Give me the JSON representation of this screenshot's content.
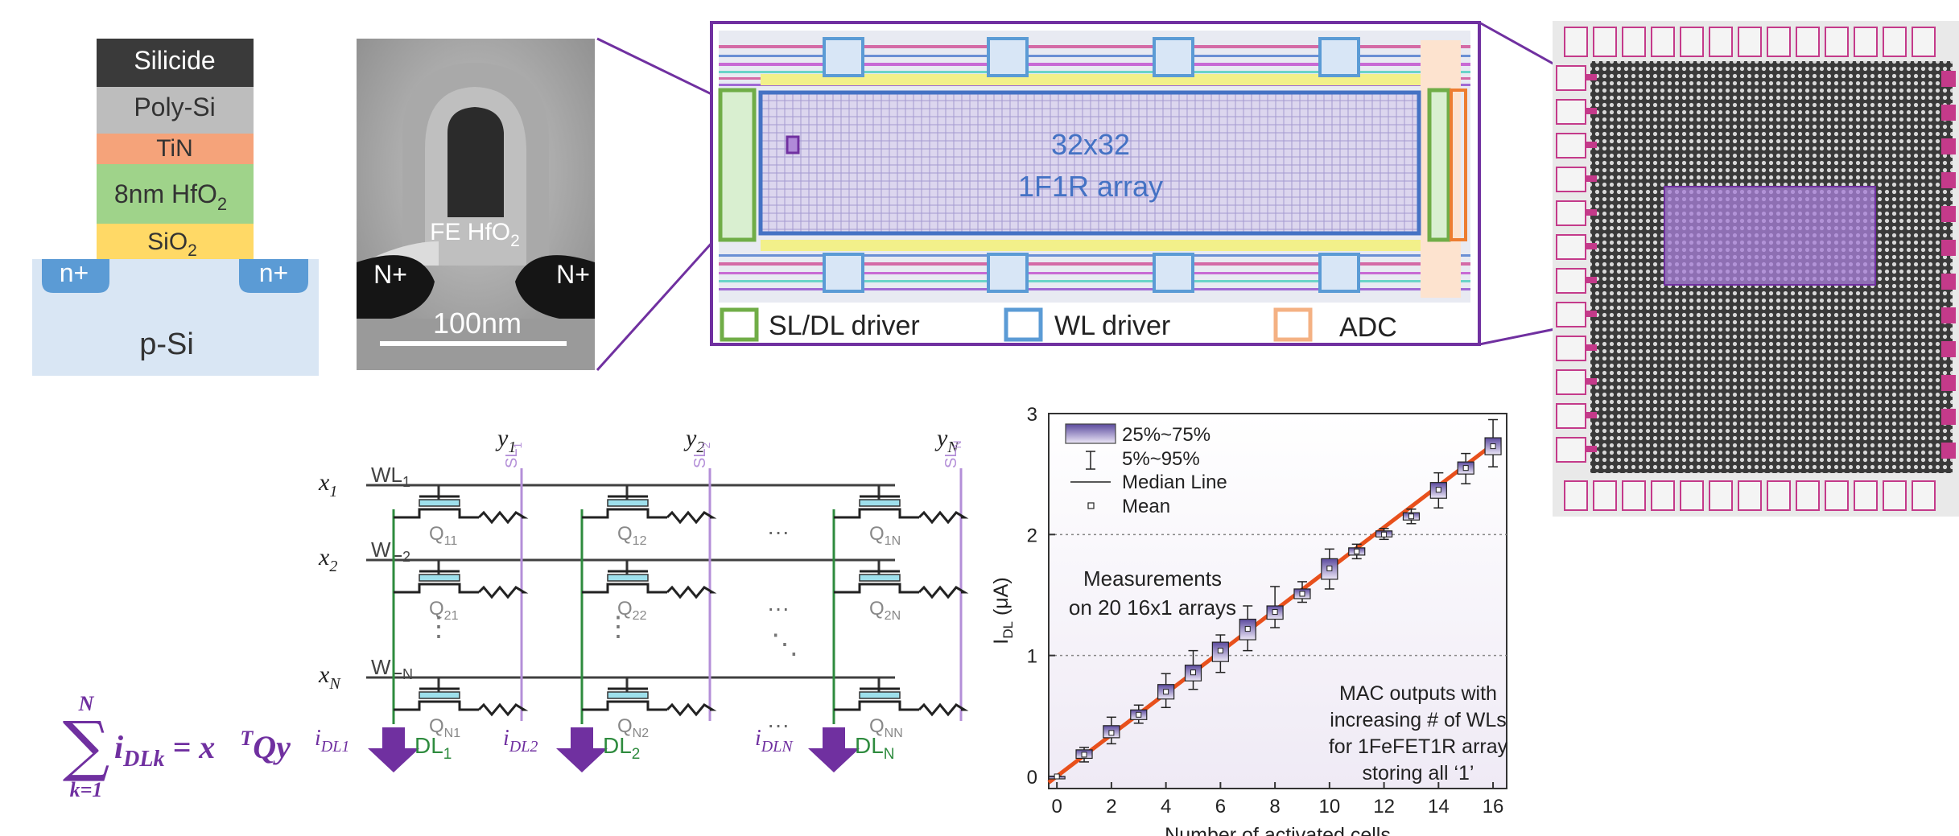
{
  "stack": {
    "silicide": "Silicide",
    "poly": "Poly-Si",
    "tin": "TiN",
    "hfo2_pre": "8nm HfO",
    "hfo2_sub": "2",
    "sio2_pre": "SiO",
    "sio2_sub": "2",
    "n_left": "n+",
    "n_right": "n+",
    "substrate": "p-Si",
    "colors": {
      "silicide": "#3a3a3a",
      "poly": "#bdbdbd",
      "tin": "#f5a37a",
      "hfo2": "#9fd38a",
      "sio2": "#ffd966",
      "substrate": "#d9e6f4",
      "nwell": "#5b9bd5"
    }
  },
  "tem": {
    "fe_label_pre": "FE HfO",
    "fe_label_sub": "2",
    "n_left": "N+",
    "n_right": "N+",
    "scale": "100nm"
  },
  "layout": {
    "array_line1": "32x32",
    "array_line2": "1F1R array",
    "legend": [
      "SL/DL driver",
      "WL driver",
      "ADC"
    ],
    "colors": {
      "frame": "#7030a0",
      "sl": "#70ad47",
      "wl": "#5b9bd5",
      "adc": "#f4b183",
      "array": "#4472c4"
    }
  },
  "circuit": {
    "columns": [
      {
        "y_base": "y",
        "y_sub": "1",
        "sl_base": "SL",
        "sl_sub": "1",
        "i_base": "i",
        "i_sub": "DL1",
        "dl_base": "DL",
        "dl_sub": "1"
      },
      {
        "y_base": "y",
        "y_sub": "2",
        "sl_base": "SL",
        "sl_sub": "2",
        "i_base": "i",
        "i_sub": "DL2",
        "dl_base": "DL",
        "dl_sub": "2"
      },
      {
        "y_base": "y",
        "y_sub": "N",
        "sl_base": "SL",
        "sl_sub": "N",
        "i_base": "i",
        "i_sub": "DLN",
        "dl_base": "DL",
        "dl_sub": "N"
      }
    ],
    "rows": [
      {
        "x_base": "x",
        "x_sub": "1",
        "wl_base": "WL",
        "wl_sub": "1"
      },
      {
        "x_base": "x",
        "x_sub": "2",
        "wl_base": "WL",
        "wl_sub": "2"
      },
      {
        "x_base": "x",
        "x_sub": "N",
        "wl_base": "WL",
        "wl_sub": "N"
      }
    ],
    "cells": [
      [
        "11",
        "12",
        "1N"
      ],
      [
        "21",
        "22",
        "2N"
      ],
      [
        "N1",
        "N2",
        "NN"
      ]
    ],
    "q": "Q",
    "dots": "···",
    "vdots": "⋮",
    "ddots": "⋱",
    "colors": {
      "wl": "#404040",
      "sl": "#b48fd8",
      "dl": "#2e8b3e",
      "arrow": "#7030a0",
      "fet": "#9ee0ec"
    }
  },
  "equation": {
    "top": "N",
    "sum": "∑",
    "bottom": "k=1",
    "body": "i",
    "body_sub": "DLk",
    "rest": " = x⃗",
    "sup": "T",
    "tail": "Qy⃗"
  },
  "chart_data": {
    "type": "box",
    "xlabel": "Number of activated cells",
    "ylabel_base": "I",
    "ylabel_sub": "DL",
    "ylabel_unit": " (μA)",
    "xlim": [
      -0.3,
      16.5
    ],
    "ylim": [
      -0.1,
      3.0
    ],
    "xticks": [
      0,
      2,
      4,
      6,
      8,
      10,
      12,
      14,
      16
    ],
    "yticks": [
      0,
      1,
      2,
      3
    ],
    "x": [
      0,
      1,
      2,
      3,
      4,
      5,
      6,
      7,
      8,
      9,
      10,
      11,
      12,
      13,
      14,
      15,
      16
    ],
    "mean": [
      0.0,
      0.18,
      0.36,
      0.51,
      0.7,
      0.86,
      1.04,
      1.22,
      1.36,
      1.51,
      1.72,
      1.86,
      2.0,
      2.15,
      2.37,
      2.55,
      2.73
    ],
    "q1": [
      0.0,
      0.15,
      0.32,
      0.47,
      0.64,
      0.79,
      0.95,
      1.13,
      1.3,
      1.47,
      1.63,
      1.83,
      1.98,
      2.12,
      2.3,
      2.5,
      2.66
    ],
    "q3": [
      0.0,
      0.22,
      0.42,
      0.55,
      0.76,
      0.92,
      1.11,
      1.3,
      1.41,
      1.55,
      1.8,
      1.89,
      2.03,
      2.18,
      2.43,
      2.6,
      2.8
    ],
    "p5": [
      0.0,
      0.12,
      0.27,
      0.44,
      0.57,
      0.72,
      0.86,
      1.04,
      1.23,
      1.44,
      1.55,
      1.8,
      1.96,
      2.09,
      2.22,
      2.42,
      2.56
    ],
    "p95": [
      0.0,
      0.24,
      0.49,
      0.59,
      0.85,
      1.04,
      1.17,
      1.41,
      1.57,
      1.61,
      1.88,
      1.92,
      2.05,
      2.21,
      2.51,
      2.67,
      2.95
    ],
    "fit": {
      "x0": -0.3,
      "y0": -0.05,
      "x1": 16.2,
      "y1": 2.78
    },
    "legend": [
      "25%~75%",
      "5%~95%",
      "Median Line",
      "Mean"
    ],
    "annotation1": [
      "Measurements",
      "on 20 16x1 arrays"
    ],
    "annotation2": [
      "MAC outputs with",
      "increasing # of WLs",
      "for 1FeFET1R array",
      "storing all ‘1’"
    ],
    "colors": {
      "box_top": "#5b4a9e",
      "box_bottom": "#e6e0f4",
      "fit": "#e8501c"
    }
  }
}
